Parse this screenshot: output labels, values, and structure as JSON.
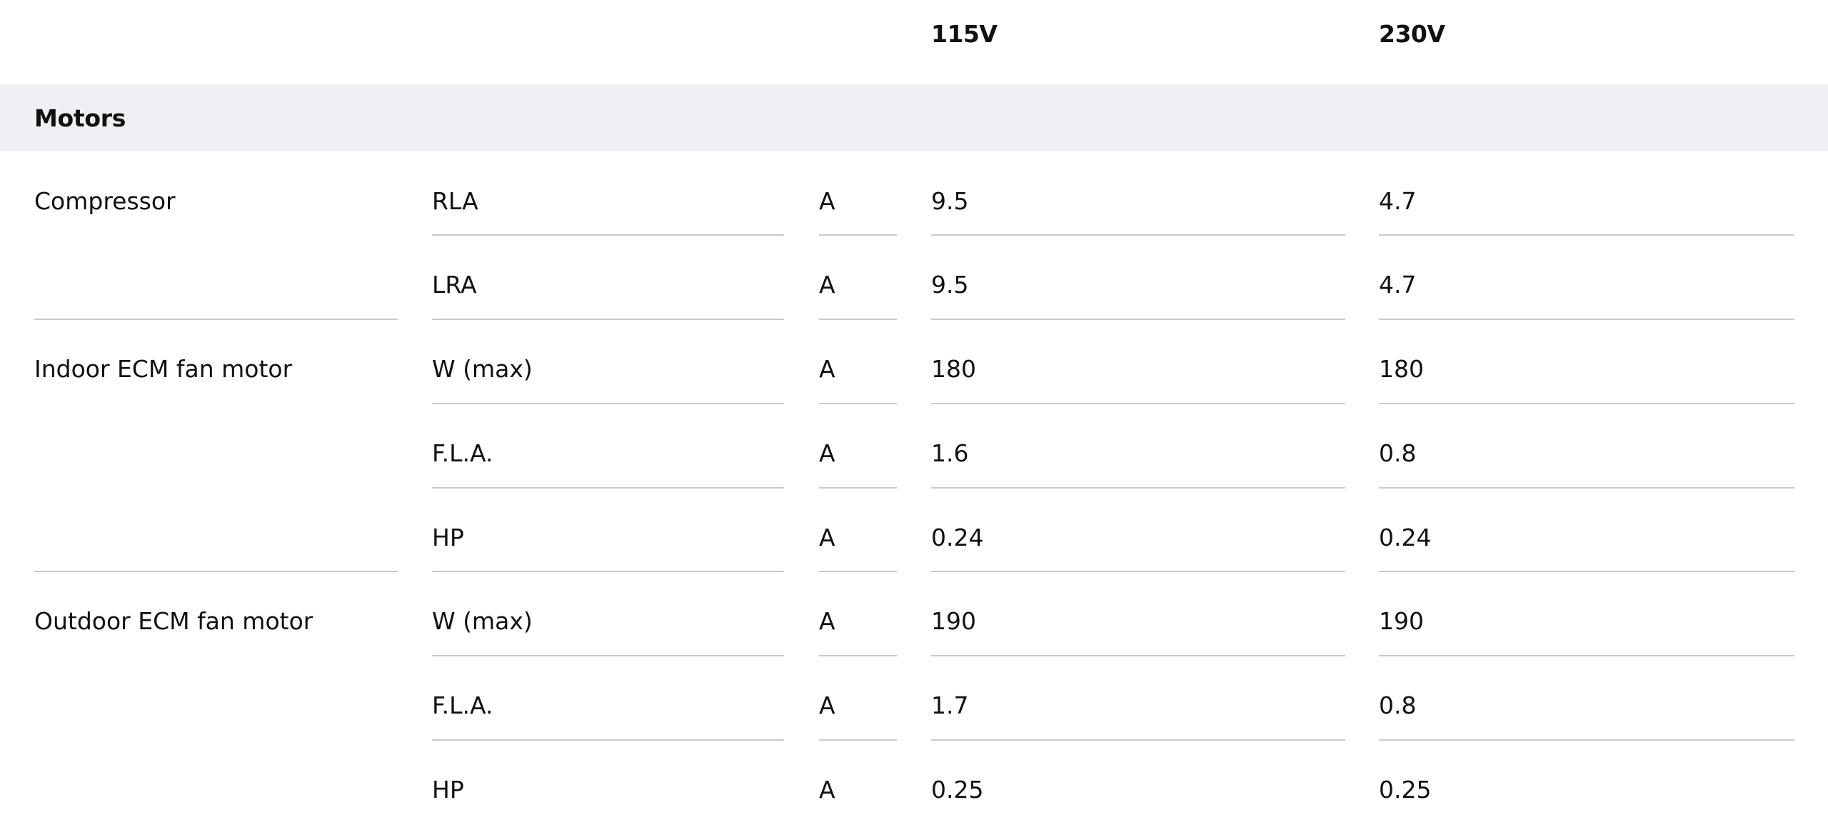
{
  "headers": {
    "voltage_115": "115V",
    "voltage_230": "230V"
  },
  "section": {
    "title": "Motors"
  },
  "groups": [
    {
      "name": "Compressor",
      "rows": [
        {
          "param": "RLA",
          "unit": "A",
          "v115": "9.5",
          "v230": "4.7"
        },
        {
          "param": "LRA",
          "unit": "A",
          "v115": "9.5",
          "v230": "4.7"
        }
      ]
    },
    {
      "name": "Indoor ECM fan motor",
      "rows": [
        {
          "param": "W (max)",
          "unit": "A",
          "v115": "180",
          "v230": "180"
        },
        {
          "param": "F.L.A.",
          "unit": "A",
          "v115": "1.6",
          "v230": "0.8"
        },
        {
          "param": "HP",
          "unit": "A",
          "v115": "0.24",
          "v230": "0.24"
        }
      ]
    },
    {
      "name": "Outdoor ECM fan motor",
      "rows": [
        {
          "param": "W (max)",
          "unit": "A",
          "v115": "190",
          "v230": "190"
        },
        {
          "param": "F.L.A.",
          "unit": "A",
          "v115": "1.7",
          "v230": "0.8"
        },
        {
          "param": "HP",
          "unit": "A",
          "v115": "0.25",
          "v230": "0.25"
        }
      ]
    }
  ]
}
